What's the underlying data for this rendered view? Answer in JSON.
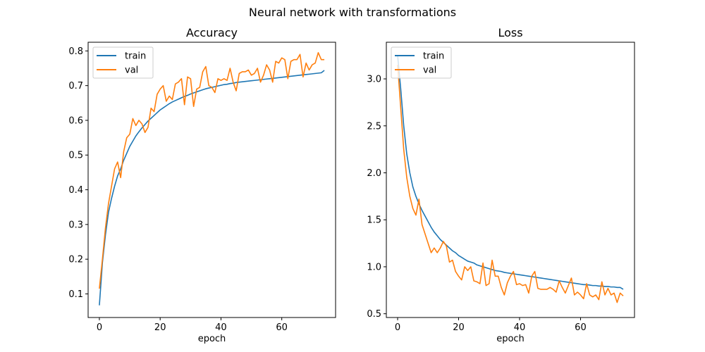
{
  "figure": {
    "suptitle": "Neural network with transformations"
  },
  "colors": {
    "train": "#1f77b4",
    "val": "#ff7f0e",
    "axes": "#000000",
    "background": "#ffffff"
  },
  "chart_data": [
    {
      "type": "line",
      "title": "Accuracy",
      "xlabel": "epoch",
      "ylabel": "",
      "xlim": [
        -3.7,
        77.7
      ],
      "ylim": [
        0.032,
        0.825
      ],
      "xticks": [
        0,
        20,
        40,
        60
      ],
      "yticks": [
        0.1,
        0.2,
        0.3,
        0.4,
        0.5,
        0.6,
        0.7,
        0.8
      ],
      "ytick_labels": [
        "0.1",
        "0.2",
        "0.3",
        "0.4",
        "0.5",
        "0.6",
        "0.7",
        "0.8"
      ],
      "grid": false,
      "legend": "upper-left",
      "x": [
        0,
        1,
        2,
        3,
        4,
        5,
        6,
        7,
        8,
        9,
        10,
        11,
        12,
        13,
        14,
        15,
        16,
        17,
        18,
        19,
        20,
        21,
        22,
        23,
        24,
        25,
        26,
        27,
        28,
        29,
        30,
        31,
        32,
        33,
        34,
        35,
        36,
        37,
        38,
        39,
        40,
        41,
        42,
        43,
        44,
        45,
        46,
        47,
        48,
        49,
        50,
        51,
        52,
        53,
        54,
        55,
        56,
        57,
        58,
        59,
        60,
        61,
        62,
        63,
        64,
        65,
        66,
        67,
        68,
        69,
        70,
        71,
        72,
        73,
        74
      ],
      "series": [
        {
          "name": "train",
          "values": [
            0.067,
            0.19,
            0.27,
            0.335,
            0.375,
            0.41,
            0.44,
            0.46,
            0.485,
            0.505,
            0.525,
            0.54,
            0.555,
            0.567,
            0.578,
            0.588,
            0.598,
            0.606,
            0.614,
            0.622,
            0.63,
            0.636,
            0.642,
            0.648,
            0.653,
            0.657,
            0.661,
            0.665,
            0.669,
            0.672,
            0.676,
            0.679,
            0.682,
            0.685,
            0.688,
            0.691,
            0.693,
            0.695,
            0.697,
            0.699,
            0.701,
            0.703,
            0.704,
            0.706,
            0.707,
            0.709,
            0.71,
            0.711,
            0.712,
            0.713,
            0.714,
            0.715,
            0.716,
            0.717,
            0.718,
            0.719,
            0.72,
            0.721,
            0.722,
            0.723,
            0.724,
            0.725,
            0.726,
            0.727,
            0.728,
            0.729,
            0.73,
            0.731,
            0.732,
            0.733,
            0.734,
            0.735,
            0.736,
            0.737,
            0.744
          ]
        },
        {
          "name": "val",
          "values": [
            0.115,
            0.2,
            0.29,
            0.36,
            0.41,
            0.46,
            0.48,
            0.435,
            0.51,
            0.55,
            0.56,
            0.605,
            0.585,
            0.6,
            0.59,
            0.565,
            0.58,
            0.635,
            0.625,
            0.675,
            0.69,
            0.7,
            0.655,
            0.67,
            0.66,
            0.705,
            0.71,
            0.72,
            0.645,
            0.725,
            0.72,
            0.64,
            0.69,
            0.695,
            0.74,
            0.755,
            0.7,
            0.695,
            0.68,
            0.72,
            0.715,
            0.72,
            0.715,
            0.75,
            0.71,
            0.685,
            0.735,
            0.74,
            0.74,
            0.745,
            0.73,
            0.735,
            0.75,
            0.71,
            0.73,
            0.76,
            0.745,
            0.71,
            0.77,
            0.765,
            0.78,
            0.775,
            0.72,
            0.77,
            0.775,
            0.775,
            0.79,
            0.725,
            0.765,
            0.745,
            0.76,
            0.765,
            0.795,
            0.775,
            0.775
          ]
        }
      ]
    },
    {
      "type": "line",
      "title": "Loss",
      "xlabel": "epoch",
      "ylabel": "",
      "xlim": [
        -3.7,
        77.7
      ],
      "ylim": [
        0.46,
        3.39
      ],
      "xticks": [
        0,
        20,
        40,
        60
      ],
      "yticks": [
        0.5,
        1.0,
        1.5,
        2.0,
        2.5,
        3.0
      ],
      "ytick_labels": [
        "0.5",
        "1.0",
        "1.5",
        "2.0",
        "2.5",
        "3.0"
      ],
      "grid": false,
      "legend": "upper-left",
      "x": [
        0,
        1,
        2,
        3,
        4,
        5,
        6,
        7,
        8,
        9,
        10,
        11,
        12,
        13,
        14,
        15,
        16,
        17,
        18,
        19,
        20,
        21,
        22,
        23,
        24,
        25,
        26,
        27,
        28,
        29,
        30,
        31,
        32,
        33,
        34,
        35,
        36,
        37,
        38,
        39,
        40,
        41,
        42,
        43,
        44,
        45,
        46,
        47,
        48,
        49,
        50,
        51,
        52,
        53,
        54,
        55,
        56,
        57,
        58,
        59,
        60,
        61,
        62,
        63,
        64,
        65,
        66,
        67,
        68,
        69,
        70,
        71,
        72,
        73,
        74
      ],
      "series": [
        {
          "name": "train",
          "values": [
            3.25,
            2.9,
            2.5,
            2.2,
            2.0,
            1.85,
            1.75,
            1.67,
            1.6,
            1.54,
            1.48,
            1.42,
            1.37,
            1.33,
            1.29,
            1.26,
            1.23,
            1.2,
            1.17,
            1.15,
            1.12,
            1.1,
            1.08,
            1.06,
            1.05,
            1.04,
            1.02,
            1.01,
            1.0,
            0.99,
            0.98,
            0.97,
            0.96,
            0.955,
            0.95,
            0.94,
            0.935,
            0.93,
            0.925,
            0.92,
            0.915,
            0.91,
            0.905,
            0.9,
            0.895,
            0.89,
            0.885,
            0.88,
            0.875,
            0.87,
            0.865,
            0.86,
            0.855,
            0.85,
            0.845,
            0.84,
            0.835,
            0.83,
            0.825,
            0.82,
            0.815,
            0.81,
            0.81,
            0.805,
            0.8,
            0.8,
            0.795,
            0.795,
            0.79,
            0.79,
            0.785,
            0.785,
            0.78,
            0.78,
            0.76
          ]
        },
        {
          "name": "val",
          "values": [
            3.15,
            2.7,
            2.25,
            1.95,
            1.75,
            1.62,
            1.55,
            1.72,
            1.45,
            1.35,
            1.25,
            1.15,
            1.2,
            1.15,
            1.2,
            1.27,
            1.22,
            1.05,
            1.07,
            0.95,
            0.9,
            0.86,
            1.0,
            0.96,
            1.0,
            0.85,
            0.84,
            0.82,
            1.04,
            0.8,
            0.82,
            1.07,
            0.9,
            0.9,
            0.78,
            0.7,
            0.83,
            0.9,
            0.95,
            0.81,
            0.82,
            0.8,
            0.81,
            0.72,
            0.9,
            0.95,
            0.77,
            0.76,
            0.76,
            0.76,
            0.78,
            0.76,
            0.73,
            0.85,
            0.78,
            0.72,
            0.8,
            0.88,
            0.7,
            0.73,
            0.7,
            0.66,
            0.82,
            0.7,
            0.68,
            0.7,
            0.65,
            0.84,
            0.7,
            0.77,
            0.7,
            0.72,
            0.62,
            0.72,
            0.69
          ]
        }
      ]
    }
  ]
}
